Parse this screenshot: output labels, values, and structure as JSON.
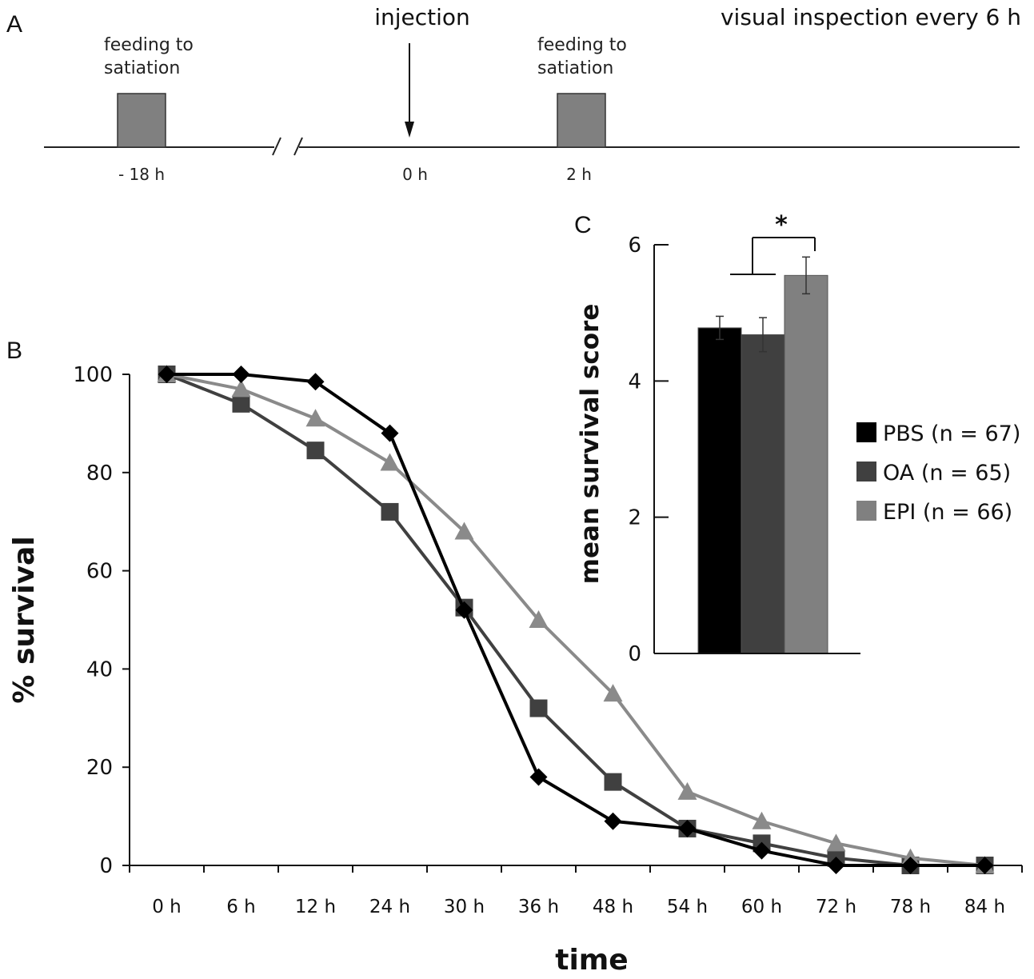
{
  "panels": {
    "a": "A",
    "b": "B",
    "c": "C"
  },
  "timeline": {
    "feeding1": [
      "feeding to",
      "satiation"
    ],
    "feeding2": [
      "feeding to",
      "satiation"
    ],
    "injection": "injection",
    "inspection": "visual inspection every 6 h",
    "ticks": [
      "- 18 h",
      "0 h",
      "2 h"
    ],
    "box_color": "#808080"
  },
  "chart_data": [
    {
      "id": "B",
      "type": "line",
      "title": "",
      "xlabel": "time",
      "ylabel": "% survival",
      "categories": [
        "0 h",
        "6 h",
        "12 h",
        "24 h",
        "30 h",
        "36 h",
        "48 h",
        "54 h",
        "60 h",
        "72 h",
        "78 h",
        "84 h"
      ],
      "ylim": [
        0,
        100
      ],
      "yticks": [
        0,
        20,
        40,
        60,
        80,
        100
      ],
      "grid": false,
      "series": [
        {
          "name": "PBS",
          "n": 67,
          "marker": "diamond",
          "color": "#000000",
          "values": [
            100,
            100,
            98.5,
            88,
            52,
            18,
            9,
            7.5,
            3,
            0,
            0,
            0
          ]
        },
        {
          "name": "OA",
          "n": 65,
          "marker": "square",
          "color": "#404040",
          "values": [
            100,
            94,
            84.5,
            72,
            52.5,
            32,
            17,
            7.5,
            4.5,
            1.5,
            0,
            0
          ]
        },
        {
          "name": "EPI",
          "n": 66,
          "marker": "triangle",
          "color": "#8a8a8a",
          "values": [
            100,
            97,
            91,
            82,
            68,
            50,
            35,
            15,
            9,
            4.5,
            1.5,
            0
          ]
        }
      ]
    },
    {
      "id": "C",
      "type": "bar",
      "title": "",
      "ylabel": "mean survival score",
      "categories": [
        "PBS",
        "OA",
        "EPI"
      ],
      "values": [
        4.78,
        4.68,
        5.55
      ],
      "errors": [
        0.17,
        0.25,
        0.27
      ],
      "colors": [
        "#000000",
        "#404040",
        "#808080"
      ],
      "ylim": [
        0,
        6
      ],
      "yticks": [
        0,
        2,
        4,
        6
      ],
      "significance": "*"
    }
  ],
  "legend": [
    {
      "label": "PBS (n = 67)",
      "color": "#000000"
    },
    {
      "label": "OA (n = 65)",
      "color": "#404040"
    },
    {
      "label": "EPI (n = 66)",
      "color": "#808080"
    }
  ]
}
